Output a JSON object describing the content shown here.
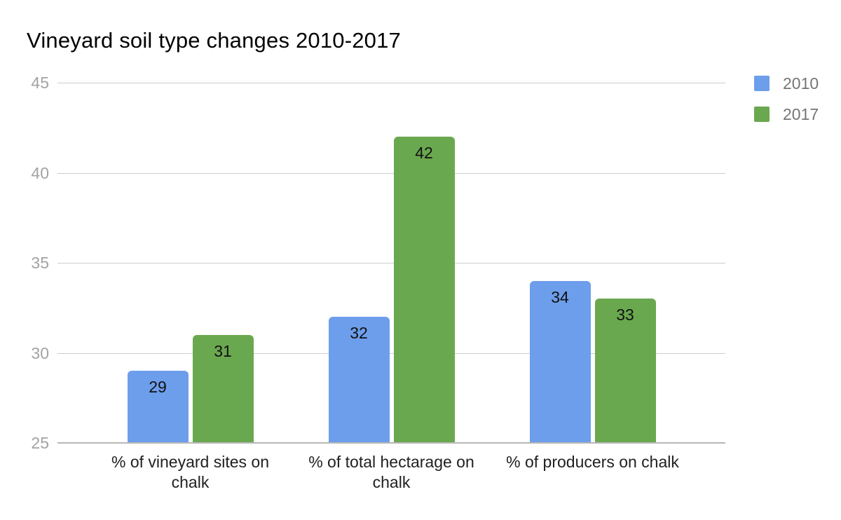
{
  "chart_data": {
    "type": "bar",
    "title": "Vineyard soil type changes 2010-2017",
    "categories": [
      "% of vineyard sites on chalk",
      "% of total hectarage on chalk",
      "% of producers on chalk"
    ],
    "series": [
      {
        "name": "2010",
        "color": "#6d9eeb",
        "values": [
          29,
          32,
          34
        ]
      },
      {
        "name": "2017",
        "color": "#6aa84f",
        "values": [
          31,
          42,
          33
        ]
      }
    ],
    "bar_labels": [
      [
        "29",
        "32",
        "34"
      ],
      [
        "31",
        "42",
        "33"
      ]
    ],
    "ylim": [
      25,
      45
    ],
    "yticks": [
      25,
      30,
      35,
      40,
      45
    ],
    "grid": true,
    "legend_position": "right",
    "legend_labels": [
      "2010",
      "2017"
    ]
  },
  "colors": {
    "series_2010": "#6d9eeb",
    "series_2017": "#6aa84f",
    "gridline": "#cccccc",
    "baseline": "#b7b7b7",
    "tick_label": "#a3a3a3",
    "legend_label": "#757575",
    "category_label": "#212121",
    "title": "#000000",
    "background": "#ffffff"
  }
}
